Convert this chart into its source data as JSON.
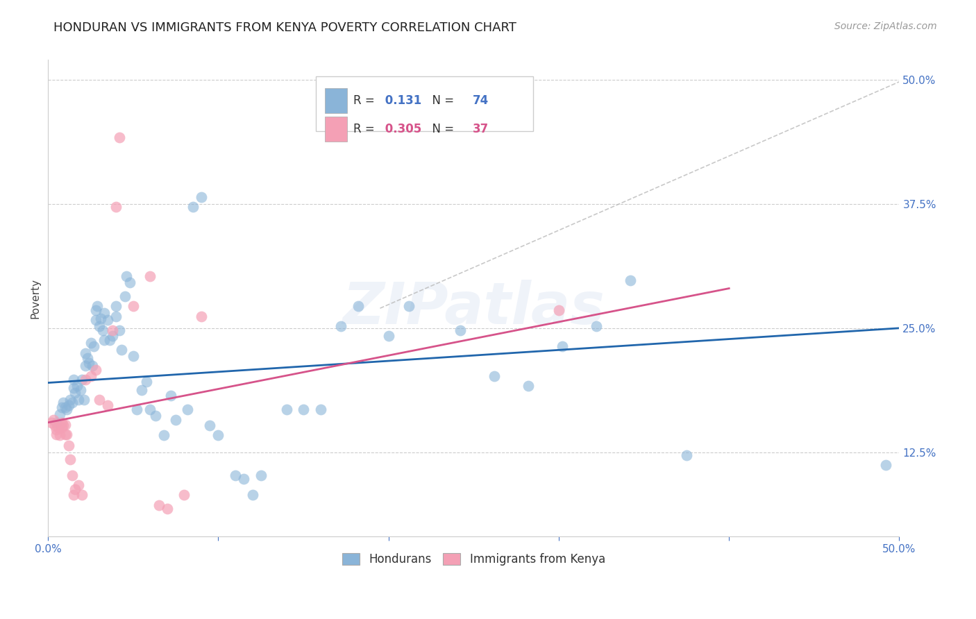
{
  "title": "HONDURAN VS IMMIGRANTS FROM KENYA POVERTY CORRELATION CHART",
  "source": "Source: ZipAtlas.com",
  "ylabel": "Poverty",
  "xlim": [
    0.0,
    0.5
  ],
  "ylim": [
    0.04,
    0.52
  ],
  "blue_R": "0.131",
  "blue_N": "74",
  "pink_R": "0.305",
  "pink_N": "37",
  "watermark": "ZIPatlas",
  "blue_color": "#8ab4d8",
  "pink_color": "#f4a0b5",
  "blue_line_color": "#2166ac",
  "pink_line_color": "#d6538a",
  "dashed_color": "#ccaaaa",
  "blue_scatter": [
    [
      0.005,
      0.155
    ],
    [
      0.007,
      0.163
    ],
    [
      0.008,
      0.17
    ],
    [
      0.009,
      0.175
    ],
    [
      0.01,
      0.17
    ],
    [
      0.011,
      0.168
    ],
    [
      0.012,
      0.172
    ],
    [
      0.013,
      0.178
    ],
    [
      0.014,
      0.175
    ],
    [
      0.015,
      0.19
    ],
    [
      0.015,
      0.198
    ],
    [
      0.016,
      0.185
    ],
    [
      0.017,
      0.192
    ],
    [
      0.018,
      0.178
    ],
    [
      0.019,
      0.188
    ],
    [
      0.02,
      0.198
    ],
    [
      0.021,
      0.178
    ],
    [
      0.022,
      0.212
    ],
    [
      0.022,
      0.225
    ],
    [
      0.023,
      0.22
    ],
    [
      0.024,
      0.215
    ],
    [
      0.025,
      0.235
    ],
    [
      0.026,
      0.212
    ],
    [
      0.027,
      0.232
    ],
    [
      0.028,
      0.258
    ],
    [
      0.028,
      0.268
    ],
    [
      0.029,
      0.272
    ],
    [
      0.03,
      0.252
    ],
    [
      0.031,
      0.26
    ],
    [
      0.032,
      0.248
    ],
    [
      0.033,
      0.238
    ],
    [
      0.033,
      0.265
    ],
    [
      0.035,
      0.258
    ],
    [
      0.036,
      0.238
    ],
    [
      0.038,
      0.242
    ],
    [
      0.04,
      0.262
    ],
    [
      0.04,
      0.272
    ],
    [
      0.042,
      0.248
    ],
    [
      0.043,
      0.228
    ],
    [
      0.045,
      0.282
    ],
    [
      0.046,
      0.302
    ],
    [
      0.048,
      0.296
    ],
    [
      0.05,
      0.222
    ],
    [
      0.052,
      0.168
    ],
    [
      0.055,
      0.188
    ],
    [
      0.058,
      0.196
    ],
    [
      0.06,
      0.168
    ],
    [
      0.063,
      0.162
    ],
    [
      0.068,
      0.142
    ],
    [
      0.072,
      0.182
    ],
    [
      0.075,
      0.158
    ],
    [
      0.082,
      0.168
    ],
    [
      0.085,
      0.372
    ],
    [
      0.09,
      0.382
    ],
    [
      0.095,
      0.152
    ],
    [
      0.1,
      0.142
    ],
    [
      0.11,
      0.102
    ],
    [
      0.115,
      0.098
    ],
    [
      0.12,
      0.082
    ],
    [
      0.125,
      0.102
    ],
    [
      0.14,
      0.168
    ],
    [
      0.15,
      0.168
    ],
    [
      0.16,
      0.168
    ],
    [
      0.172,
      0.252
    ],
    [
      0.182,
      0.272
    ],
    [
      0.2,
      0.242
    ],
    [
      0.212,
      0.272
    ],
    [
      0.242,
      0.248
    ],
    [
      0.262,
      0.202
    ],
    [
      0.282,
      0.192
    ],
    [
      0.302,
      0.232
    ],
    [
      0.322,
      0.252
    ],
    [
      0.342,
      0.298
    ],
    [
      0.375,
      0.122
    ],
    [
      0.492,
      0.112
    ]
  ],
  "pink_scatter": [
    [
      0.002,
      0.155
    ],
    [
      0.003,
      0.158
    ],
    [
      0.004,
      0.152
    ],
    [
      0.005,
      0.148
    ],
    [
      0.005,
      0.143
    ],
    [
      0.006,
      0.15
    ],
    [
      0.007,
      0.142
    ],
    [
      0.008,
      0.15
    ],
    [
      0.008,
      0.155
    ],
    [
      0.009,
      0.152
    ],
    [
      0.01,
      0.153
    ],
    [
      0.01,
      0.143
    ],
    [
      0.011,
      0.143
    ],
    [
      0.012,
      0.132
    ],
    [
      0.013,
      0.118
    ],
    [
      0.014,
      0.102
    ],
    [
      0.015,
      0.082
    ],
    [
      0.016,
      0.088
    ],
    [
      0.018,
      0.092
    ],
    [
      0.02,
      0.082
    ],
    [
      0.022,
      0.198
    ],
    [
      0.025,
      0.202
    ],
    [
      0.028,
      0.208
    ],
    [
      0.03,
      0.178
    ],
    [
      0.035,
      0.172
    ],
    [
      0.038,
      0.248
    ],
    [
      0.04,
      0.372
    ],
    [
      0.042,
      0.442
    ],
    [
      0.05,
      0.272
    ],
    [
      0.06,
      0.302
    ],
    [
      0.065,
      0.072
    ],
    [
      0.07,
      0.068
    ],
    [
      0.08,
      0.082
    ],
    [
      0.09,
      0.262
    ],
    [
      0.3,
      0.268
    ]
  ],
  "blue_line_x": [
    0.0,
    0.5
  ],
  "blue_line_y": [
    0.195,
    0.25
  ],
  "pink_line_x": [
    0.0,
    0.4
  ],
  "pink_line_y": [
    0.155,
    0.29
  ],
  "dashed_line_x": [
    0.195,
    0.5
  ],
  "dashed_line_y": [
    0.27,
    0.498
  ],
  "grid_color": "#cccccc",
  "background_color": "#ffffff",
  "title_fontsize": 13,
  "axis_color": "#4472c4"
}
